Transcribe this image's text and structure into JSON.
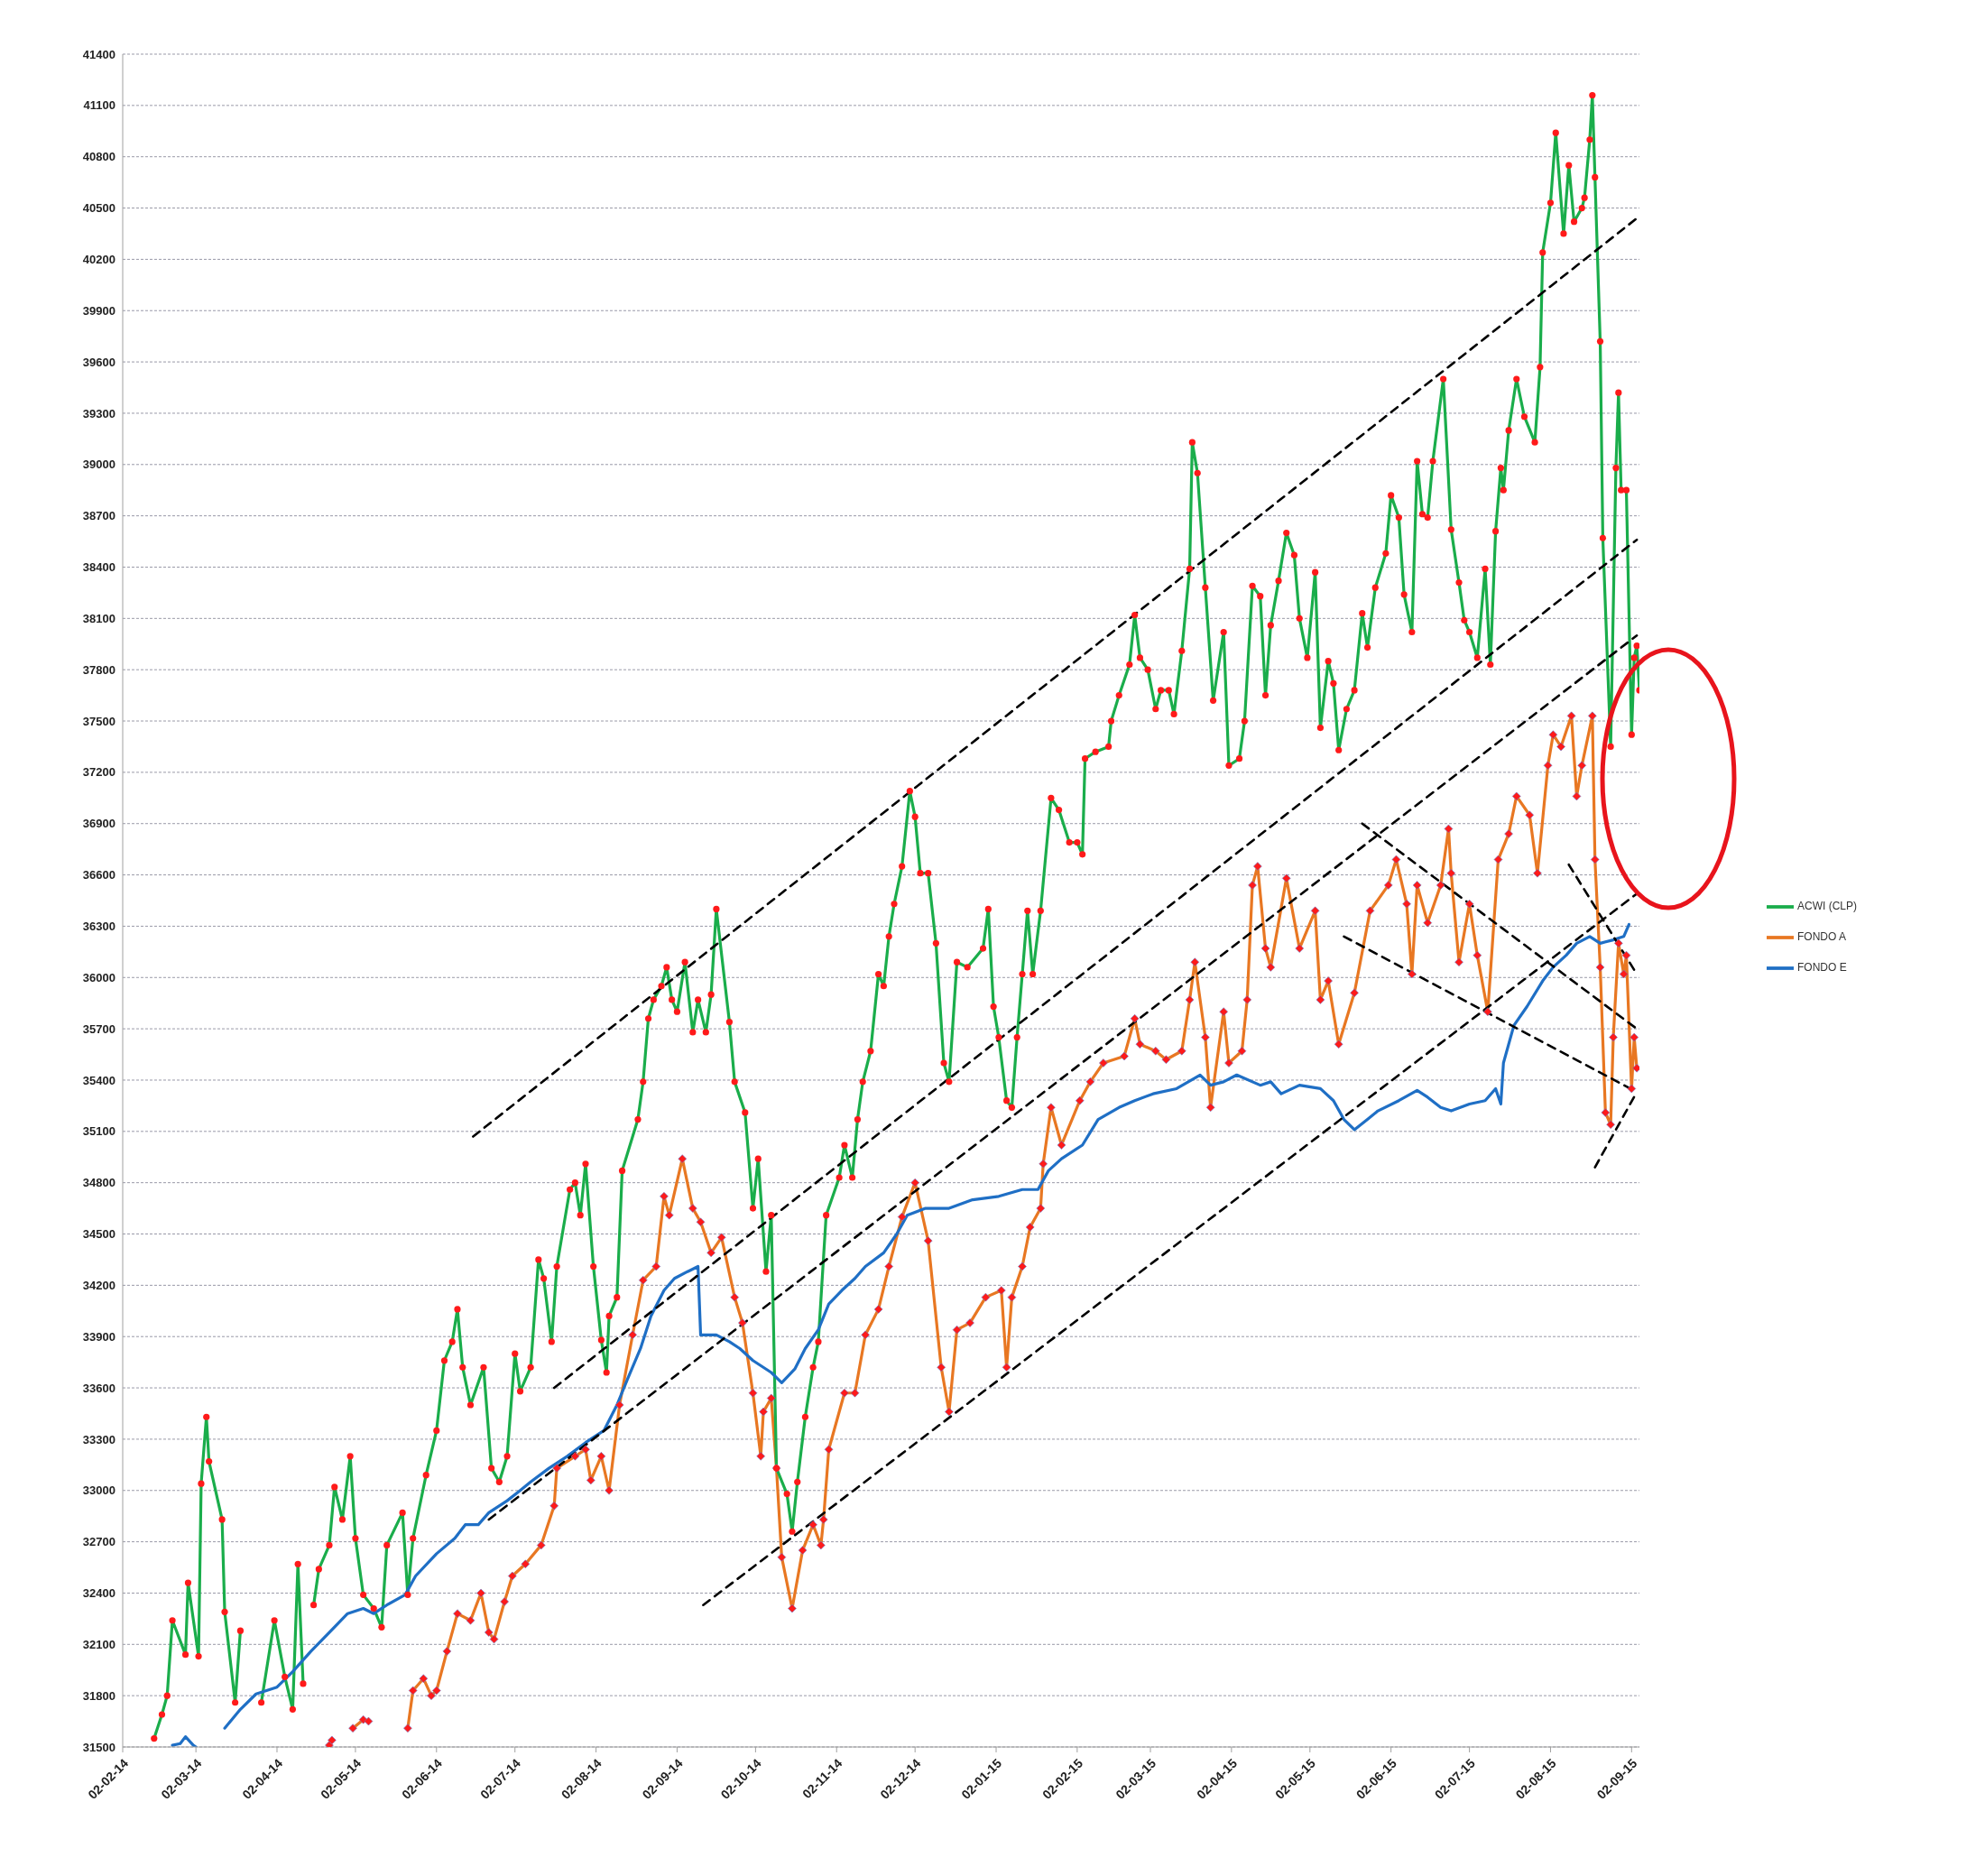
{
  "chart_data": {
    "type": "line",
    "grid": "y",
    "legend": "right",
    "xlim": [
      "2014-02-02",
      "2015-09-05"
    ],
    "xticks": [
      {
        "value": "2014-02-02",
        "label": "02-02-14"
      },
      {
        "value": "2014-03-02",
        "label": "02-03-14"
      },
      {
        "value": "2014-04-02",
        "label": "02-04-14"
      },
      {
        "value": "2014-05-02",
        "label": "02-05-14"
      },
      {
        "value": "2014-06-02",
        "label": "02-06-14"
      },
      {
        "value": "2014-07-02",
        "label": "02-07-14"
      },
      {
        "value": "2014-08-02",
        "label": "02-08-14"
      },
      {
        "value": "2014-09-02",
        "label": "02-09-14"
      },
      {
        "value": "2014-10-02",
        "label": "02-10-14"
      },
      {
        "value": "2014-11-02",
        "label": "02-11-14"
      },
      {
        "value": "2014-12-02",
        "label": "02-12-14"
      },
      {
        "value": "2015-01-02",
        "label": "02-01-15"
      },
      {
        "value": "2015-02-02",
        "label": "02-02-15"
      },
      {
        "value": "2015-03-02",
        "label": "02-03-15"
      },
      {
        "value": "2015-04-02",
        "label": "02-04-15"
      },
      {
        "value": "2015-05-02",
        "label": "02-05-15"
      },
      {
        "value": "2015-06-02",
        "label": "02-06-15"
      },
      {
        "value": "2015-07-02",
        "label": "02-07-15"
      },
      {
        "value": "2015-08-02",
        "label": "02-08-15"
      },
      {
        "value": "2015-09-02",
        "label": "02-09-15"
      }
    ],
    "ylim": [
      31500,
      41400
    ],
    "yticks": [
      31500,
      31800,
      32100,
      32400,
      32700,
      33000,
      33300,
      33600,
      33900,
      34200,
      34500,
      34800,
      35100,
      35400,
      35700,
      36000,
      36300,
      36600,
      36900,
      37200,
      37500,
      37800,
      38100,
      38400,
      38700,
      39000,
      39300,
      39600,
      39900,
      40200,
      40500,
      40800,
      41100,
      41400
    ],
    "series": [
      {
        "name": "FONDO A",
        "color": "#e87722",
        "marker": "diamond",
        "x": [
          "2014-04-22",
          "2014-04-23",
          "2014-04-27",
          "2014-05-01",
          "2014-05-05",
          "2014-05-07",
          "2014-05-09",
          "2014-05-22",
          "2014-05-24",
          "2014-05-28",
          "2014-05-31",
          "2014-06-02",
          "2014-06-06",
          "2014-06-10",
          "2014-06-15",
          "2014-06-19",
          "2014-06-22",
          "2014-06-24",
          "2014-06-28",
          "2014-07-01",
          "2014-07-06",
          "2014-07-12",
          "2014-07-17",
          "2014-07-18",
          "2014-07-25",
          "2014-07-29",
          "2014-07-31",
          "2014-08-04",
          "2014-08-07",
          "2014-08-11",
          "2014-08-16",
          "2014-08-20",
          "2014-08-25",
          "2014-08-28",
          "2014-08-30",
          "2014-09-04",
          "2014-09-08",
          "2014-09-11",
          "2014-09-15",
          "2014-09-19",
          "2014-09-24",
          "2014-09-27",
          "2014-10-01",
          "2014-10-04",
          "2014-10-05",
          "2014-10-08",
          "2014-10-10",
          "2014-10-12",
          "2014-10-16",
          "2014-10-20",
          "2014-10-24",
          "2014-10-27",
          "2014-10-28",
          "2014-10-30",
          "2014-11-05",
          "2014-11-09",
          "2014-11-13",
          "2014-11-18",
          "2014-11-22",
          "2014-11-27",
          "2014-12-02",
          "2014-12-07",
          "2014-12-12",
          "2014-12-15",
          "2014-12-18",
          "2014-12-23",
          "2014-12-29",
          "2015-01-04",
          "2015-01-06",
          "2015-01-08",
          "2015-01-12",
          "2015-01-15",
          "2015-01-19",
          "2015-01-20",
          "2015-01-23",
          "2015-01-27",
          "2015-02-03",
          "2015-02-07",
          "2015-02-12",
          "2015-02-20",
          "2015-02-24",
          "2015-02-26",
          "2015-03-04",
          "2015-03-08",
          "2015-03-14",
          "2015-03-17",
          "2015-03-19",
          "2015-03-23",
          "2015-03-25",
          "2015-03-30",
          "2015-04-01",
          "2015-04-06",
          "2015-04-08",
          "2015-04-10",
          "2015-04-12",
          "2015-04-15",
          "2015-04-17",
          "2015-04-23",
          "2015-04-28",
          "2015-05-04",
          "2015-05-06",
          "2015-05-09",
          "2015-05-13",
          "2015-05-19",
          "2015-05-25",
          "2015-06-01",
          "2015-06-04",
          "2015-06-08",
          "2015-06-10",
          "2015-06-12",
          "2015-06-16",
          "2015-06-21",
          "2015-06-24",
          "2015-06-25",
          "2015-06-28",
          "2015-07-02",
          "2015-07-05",
          "2015-07-09",
          "2015-07-13",
          "2015-07-17",
          "2015-07-20",
          "2015-07-25",
          "2015-07-28",
          "2015-08-01",
          "2015-08-03",
          "2015-08-06",
          "2015-08-10",
          "2015-08-12",
          "2015-08-14",
          "2015-08-18",
          "2015-08-19",
          "2015-08-21",
          "2015-08-23",
          "2015-08-25",
          "2015-08-26",
          "2015-08-28",
          "2015-08-30",
          "2015-08-31",
          "2015-09-02",
          "2015-09-03",
          "2015-09-04"
        ],
        "values": [
          31510,
          31540,
          null,
          31610,
          31660,
          31650,
          null,
          31610,
          31830,
          31900,
          31800,
          31830,
          32060,
          32280,
          32240,
          32400,
          32170,
          32130,
          32350,
          32500,
          32570,
          32680,
          32910,
          33130,
          33200,
          33240,
          33060,
          33200,
          33000,
          33500,
          33910,
          34230,
          34310,
          34720,
          34610,
          34940,
          34650,
          34570,
          34390,
          34480,
          34130,
          33980,
          33570,
          33200,
          33460,
          33540,
          33130,
          32610,
          32310,
          32650,
          32800,
          32680,
          32830,
          33240,
          33570,
          33570,
          33910,
          34060,
          34310,
          34600,
          34800,
          34460,
          33720,
          33460,
          33940,
          33980,
          34130,
          34170,
          33720,
          34130,
          34310,
          34540,
          34650,
          34910,
          35240,
          35020,
          35280,
          35390,
          35500,
          35540,
          35760,
          35610,
          35570,
          35520,
          35570,
          35870,
          36090,
          35650,
          35240,
          35800,
          35500,
          35570,
          35870,
          36540,
          36650,
          36170,
          36060,
          36580,
          36170,
          36390,
          35870,
          35980,
          35610,
          35910,
          36390,
          36540,
          36690,
          36430,
          36020,
          36540,
          36320,
          36540,
          36870,
          36610,
          36090,
          36430,
          36130,
          35800,
          36690,
          36840,
          37060,
          36950,
          36610,
          37240,
          37420,
          37350,
          37530,
          37060,
          37240,
          37530,
          36690,
          36060,
          35210,
          35140,
          35650,
          36200,
          36020,
          36130,
          35350,
          35650,
          35470
        ]
      },
      {
        "name": "ACWI (CLP)",
        "color": "#1aad4b",
        "marker": "circle",
        "x": [
          "2014-02-14",
          "2014-02-17",
          "2014-02-19",
          "2014-02-21",
          "2014-02-26",
          "2014-02-27",
          "2014-03-03",
          "2014-03-04",
          "2014-03-06",
          "2014-03-07",
          "2014-03-12",
          "2014-03-13",
          "2014-03-17",
          "2014-03-19",
          "2014-03-22",
          "2014-03-27",
          "2014-04-01",
          "2014-04-05",
          "2014-04-08",
          "2014-04-10",
          "2014-04-12",
          "2014-04-14",
          "2014-04-16",
          "2014-04-18",
          "2014-04-22",
          "2014-04-24",
          "2014-04-27",
          "2014-04-30",
          "2014-05-02",
          "2014-05-05",
          "2014-05-09",
          "2014-05-12",
          "2014-05-14",
          "2014-05-20",
          "2014-05-22",
          "2014-05-24",
          "2014-05-29",
          "2014-06-02",
          "2014-06-05",
          "2014-06-08",
          "2014-06-10",
          "2014-06-12",
          "2014-06-15",
          "2014-06-20",
          "2014-06-23",
          "2014-06-26",
          "2014-06-29",
          "2014-07-02",
          "2014-07-04",
          "2014-07-08",
          "2014-07-11",
          "2014-07-13",
          "2014-07-16",
          "2014-07-18",
          "2014-07-23",
          "2014-07-25",
          "2014-07-27",
          "2014-07-29",
          "2014-08-01",
          "2014-08-04",
          "2014-08-06",
          "2014-08-07",
          "2014-08-10",
          "2014-08-12",
          "2014-08-18",
          "2014-08-20",
          "2014-08-22",
          "2014-08-24",
          "2014-08-27",
          "2014-08-29",
          "2014-08-31",
          "2014-09-02",
          "2014-09-05",
          "2014-09-08",
          "2014-09-10",
          "2014-09-13",
          "2014-09-15",
          "2014-09-17",
          "2014-09-22",
          "2014-09-24",
          "2014-09-28",
          "2014-10-01",
          "2014-10-03",
          "2014-10-06",
          "2014-10-08",
          "2014-10-10",
          "2014-10-14",
          "2014-10-16",
          "2014-10-18",
          "2014-10-21",
          "2014-10-24",
          "2014-10-26",
          "2014-10-29",
          "2014-11-03",
          "2014-11-05",
          "2014-11-08",
          "2014-11-10",
          "2014-11-12",
          "2014-11-15",
          "2014-11-18",
          "2014-11-20",
          "2014-11-22",
          "2014-11-24",
          "2014-11-27",
          "2014-11-30",
          "2014-12-02",
          "2014-12-04",
          "2014-12-07",
          "2014-12-10",
          "2014-12-13",
          "2014-12-15",
          "2014-12-18",
          "2014-12-22",
          "2014-12-28",
          "2014-12-30",
          "2015-01-01",
          "2015-01-03",
          "2015-01-06",
          "2015-01-08",
          "2015-01-10",
          "2015-01-12",
          "2015-01-14",
          "2015-01-16",
          "2015-01-19",
          "2015-01-23",
          "2015-01-26",
          "2015-01-30",
          "2015-02-02",
          "2015-02-04",
          "2015-02-05",
          "2015-02-09",
          "2015-02-14",
          "2015-02-15",
          "2015-02-18",
          "2015-02-22",
          "2015-02-24",
          "2015-02-26",
          "2015-03-01",
          "2015-03-04",
          "2015-03-06",
          "2015-03-09",
          "2015-03-11",
          "2015-03-14",
          "2015-03-17",
          "2015-03-18",
          "2015-03-20",
          "2015-03-23",
          "2015-03-26",
          "2015-03-30",
          "2015-04-01",
          "2015-04-05",
          "2015-04-07",
          "2015-04-10",
          "2015-04-13",
          "2015-04-15",
          "2015-04-17",
          "2015-04-20",
          "2015-04-23",
          "2015-04-26",
          "2015-04-28",
          "2015-05-01",
          "2015-05-04",
          "2015-05-06",
          "2015-05-09",
          "2015-05-11",
          "2015-05-13",
          "2015-05-16",
          "2015-05-19",
          "2015-05-22",
          "2015-05-24",
          "2015-05-27",
          "2015-05-31",
          "2015-06-02",
          "2015-06-05",
          "2015-06-07",
          "2015-06-10",
          "2015-06-12",
          "2015-06-14",
          "2015-06-16",
          "2015-06-18",
          "2015-06-22",
          "2015-06-25",
          "2015-06-28",
          "2015-06-30",
          "2015-07-02",
          "2015-07-05",
          "2015-07-08",
          "2015-07-10",
          "2015-07-12",
          "2015-07-14",
          "2015-07-15",
          "2015-07-17",
          "2015-07-20",
          "2015-07-23",
          "2015-07-27",
          "2015-07-29",
          "2015-07-30",
          "2015-08-02",
          "2015-08-04",
          "2015-08-07",
          "2015-08-09",
          "2015-08-11",
          "2015-08-14",
          "2015-08-15",
          "2015-08-17",
          "2015-08-18",
          "2015-08-19",
          "2015-08-21",
          "2015-08-22",
          "2015-08-25",
          "2015-08-27",
          "2015-08-28",
          "2015-08-29",
          "2015-08-31",
          "2015-09-02",
          "2015-09-03",
          "2015-09-04",
          "2015-09-05"
        ],
        "values": [
          31550,
          31690,
          31800,
          32240,
          32040,
          32460,
          32030,
          33040,
          33430,
          33170,
          32830,
          32290,
          31760,
          32180,
          null,
          31760,
          32240,
          31910,
          31720,
          32570,
          31870,
          null,
          32330,
          32540,
          32680,
          33020,
          32830,
          33200,
          32720,
          32390,
          32310,
          32200,
          32680,
          32870,
          32390,
          32720,
          33090,
          33350,
          33760,
          33870,
          34060,
          33720,
          33500,
          33720,
          33130,
          33050,
          33200,
          33800,
          33580,
          33720,
          34350,
          34240,
          33870,
          34310,
          34760,
          34800,
          34610,
          34910,
          34310,
          33880,
          33690,
          34020,
          34130,
          34870,
          35170,
          35390,
          35760,
          35870,
          35950,
          36060,
          35870,
          35800,
          36090,
          35680,
          35870,
          35680,
          35900,
          36400,
          35740,
          35390,
          35210,
          34650,
          34940,
          34280,
          34610,
          33130,
          32980,
          32760,
          33050,
          33430,
          33720,
          33870,
          34610,
          34830,
          35020,
          34830,
          35170,
          35390,
          35570,
          36020,
          35950,
          36240,
          36430,
          36650,
          37090,
          36940,
          36610,
          36610,
          36200,
          35500,
          35390,
          36090,
          36060,
          36170,
          36400,
          35830,
          35650,
          35280,
          35240,
          35650,
          36020,
          36390,
          36020,
          36390,
          37050,
          36980,
          36790,
          36790,
          36720,
          37280,
          37320,
          37350,
          37500,
          37650,
          37830,
          38120,
          37870,
          37800,
          37570,
          37680,
          37680,
          37540,
          37910,
          38390,
          39130,
          38950,
          38280,
          37620,
          38020,
          37240,
          37280,
          37500,
          38290,
          38230,
          37650,
          38060,
          38320,
          38600,
          38470,
          38100,
          37870,
          38370,
          37460,
          37850,
          37720,
          37330,
          37570,
          37680,
          38130,
          37930,
          38280,
          38480,
          38820,
          38690,
          38240,
          38020,
          39020,
          38710,
          38690,
          39020,
          39500,
          38620,
          38310,
          38090,
          38020,
          37870,
          38390,
          37830,
          38610,
          38980,
          38850,
          39200,
          39500,
          39280,
          39130,
          39570,
          40240,
          40530,
          40940,
          40350,
          40750,
          40420,
          40500,
          40560,
          40900,
          41160,
          40680,
          39720,
          38570,
          37350,
          38980,
          39420,
          38850,
          38850,
          37420,
          37870,
          37940,
          37680
        ]
      },
      {
        "name": "FONDO E",
        "color": "#1f6fc5",
        "marker": "none",
        "x": [
          "2014-02-21",
          "2014-02-24",
          "2014-02-26",
          "2014-03-01",
          "2014-03-02",
          "2014-03-08",
          "2014-03-13",
          "2014-03-19",
          "2014-03-25",
          "2014-04-02",
          "2014-04-08",
          "2014-04-15",
          "2014-04-22",
          "2014-04-29",
          "2014-05-05",
          "2014-05-09",
          "2014-05-14",
          "2014-05-21",
          "2014-05-25",
          "2014-06-02",
          "2014-06-09",
          "2014-06-13",
          "2014-06-18",
          "2014-06-22",
          "2014-06-29",
          "2014-07-04",
          "2014-07-08",
          "2014-07-15",
          "2014-07-22",
          "2014-07-29",
          "2014-08-05",
          "2014-08-10",
          "2014-08-14",
          "2014-08-19",
          "2014-08-23",
          "2014-08-28",
          "2014-09-01",
          "2014-09-06",
          "2014-09-10",
          "2014-09-11",
          "2014-09-17",
          "2014-09-22",
          "2014-09-26",
          "2014-10-01",
          "2014-10-08",
          "2014-10-12",
          "2014-10-17",
          "2014-10-21",
          "2014-10-26",
          "2014-10-30",
          "2014-11-04",
          "2014-11-09",
          "2014-11-13",
          "2014-11-20",
          "2014-11-25",
          "2014-11-29",
          "2014-12-06",
          "2014-12-15",
          "2014-12-24",
          "2015-01-03",
          "2015-01-12",
          "2015-01-18",
          "2015-01-22",
          "2015-01-27",
          "2015-02-04",
          "2015-02-10",
          "2015-02-18",
          "2015-02-24",
          "2015-03-03",
          "2015-03-12",
          "2015-03-21",
          "2015-03-25",
          "2015-03-30",
          "2015-04-04",
          "2015-04-13",
          "2015-04-17",
          "2015-04-21",
          "2015-04-28",
          "2015-05-06",
          "2015-05-11",
          "2015-05-15",
          "2015-05-19",
          "2015-05-24",
          "2015-05-28",
          "2015-06-05",
          "2015-06-12",
          "2015-06-16",
          "2015-06-21",
          "2015-06-25",
          "2015-07-02",
          "2015-07-08",
          "2015-07-12",
          "2015-07-14",
          "2015-07-15",
          "2015-07-19",
          "2015-07-24",
          "2015-07-30",
          "2015-08-03",
          "2015-08-08",
          "2015-08-12",
          "2015-08-17",
          "2015-08-21",
          "2015-08-26",
          "2015-08-30",
          "2015-09-01"
        ],
        "values": [
          31510,
          31520,
          31560,
          31510,
          31500,
          null,
          31610,
          31720,
          31810,
          31850,
          31940,
          32060,
          32170,
          32280,
          32310,
          32280,
          32330,
          32390,
          32500,
          32630,
          32720,
          32800,
          32800,
          32870,
          32940,
          33000,
          33050,
          33130,
          33200,
          33280,
          33350,
          33500,
          33650,
          33830,
          34020,
          34170,
          34240,
          34280,
          34310,
          33910,
          33910,
          33870,
          33830,
          33760,
          33690,
          33630,
          33710,
          33830,
          33940,
          34090,
          34170,
          34240,
          34310,
          34390,
          34500,
          34610,
          34650,
          34650,
          34700,
          34720,
          34760,
          34760,
          34870,
          34940,
          35020,
          35170,
          35240,
          35280,
          35320,
          35350,
          35430,
          35370,
          35390,
          35430,
          35370,
          35390,
          35320,
          35370,
          35350,
          35280,
          35170,
          35110,
          35170,
          35220,
          35280,
          35340,
          35300,
          35240,
          35220,
          35260,
          35280,
          35350,
          35260,
          35500,
          35720,
          35830,
          35980,
          36060,
          36130,
          36200,
          36240,
          36200,
          36220,
          36240,
          36310
        ]
      },
      {
        "type": "line",
        "color": "#000000",
        "marker": "none",
        "line_style": "dashed",
        "x": [
          "2014-06-16",
          "2015-09-04"
        ],
        "values": [
          35070,
          40440
        ]
      },
      {
        "type": "line",
        "color": "#000000",
        "marker": "none",
        "line_style": "dashed",
        "x": [
          "2014-07-17",
          "2015-09-04"
        ],
        "values": [
          33600,
          38560
        ]
      },
      {
        "type": "line",
        "color": "#000000",
        "marker": "none",
        "line_style": "dashed",
        "x": [
          "2014-06-22",
          "2015-09-04"
        ],
        "values": [
          32830,
          38000
        ]
      },
      {
        "type": "line",
        "color": "#000000",
        "marker": "none",
        "line_style": "dashed",
        "x": [
          "2014-09-12",
          "2015-09-04"
        ],
        "values": [
          32330,
          36490
        ]
      },
      {
        "type": "line",
        "color": "#000000",
        "marker": "none",
        "line_style": "dashed",
        "x": [
          "2015-05-22",
          "2015-09-04"
        ],
        "values": [
          36900,
          35700
        ]
      },
      {
        "type": "line",
        "color": "#000000",
        "marker": "none",
        "line_style": "dashed",
        "x": [
          "2015-05-15",
          "2015-09-04"
        ],
        "values": [
          36240,
          35330
        ]
      },
      {
        "type": "line",
        "color": "#000000",
        "marker": "none",
        "line_style": "dashed",
        "x": [
          "2015-08-09",
          "2015-09-04"
        ],
        "values": [
          36660,
          36020
        ]
      },
      {
        "type": "line",
        "color": "#000000",
        "marker": "none",
        "line_style": "dashed",
        "x": [
          "2015-08-19",
          "2015-09-04"
        ],
        "values": [
          34890,
          35330
        ]
      }
    ]
  }
}
